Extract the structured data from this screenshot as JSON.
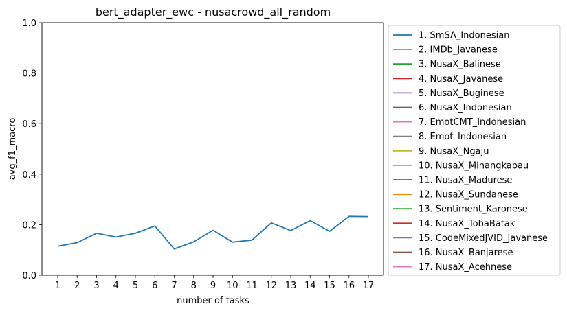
{
  "chart_data": {
    "type": "line",
    "title": "bert_adapter_ewc - nusacrowd_all_random",
    "xlabel": "number of tasks",
    "ylabel": "avg_f1_macro",
    "ylim": [
      0,
      1
    ],
    "yticks": [
      "0.0",
      "0.2",
      "0.4",
      "0.6",
      "0.8",
      "1.0"
    ],
    "categories": [
      "1",
      "2",
      "3",
      "4",
      "5",
      "6",
      "7",
      "8",
      "9",
      "10",
      "11",
      "12",
      "13",
      "14",
      "15",
      "16",
      "17"
    ],
    "series": [
      {
        "name": "avg_f1_macro",
        "color": "#1f77b4",
        "values": [
          0.115,
          0.129,
          0.166,
          0.151,
          0.166,
          0.195,
          0.104,
          0.132,
          0.178,
          0.131,
          0.139,
          0.207,
          0.177,
          0.216,
          0.174,
          0.233,
          0.232
        ]
      }
    ],
    "legend": {
      "position": "outside-right",
      "entries": [
        {
          "label": "1. SmSA_Indonesian",
          "color": "#1f77b4"
        },
        {
          "label": "2. IMDb_Javanese",
          "color": "#ff7f0e"
        },
        {
          "label": "3. NusaX_Balinese",
          "color": "#2ca02c"
        },
        {
          "label": "4. NusaX_Javanese",
          "color": "#d62728"
        },
        {
          "label": "5. NusaX_Buginese",
          "color": "#9467bd"
        },
        {
          "label": "6. NusaX_Indonesian",
          "color": "#8c564b"
        },
        {
          "label": "7. EmotCMT_Indonesian",
          "color": "#e377c2"
        },
        {
          "label": "8. Emot_Indonesian",
          "color": "#7f7f7f"
        },
        {
          "label": "9. NusaX_Ngaju",
          "color": "#bcbd22"
        },
        {
          "label": "10. NusaX_Minangkabau",
          "color": "#17becf"
        },
        {
          "label": "11. NusaX_Madurese",
          "color": "#1f77b4"
        },
        {
          "label": "12. NusaX_Sundanese",
          "color": "#ff7f0e"
        },
        {
          "label": "13. Sentiment_Karonese",
          "color": "#2ca02c"
        },
        {
          "label": "14. NusaX_TobaBatak",
          "color": "#d62728"
        },
        {
          "label": "15. CodeMixedJVID_Javanese",
          "color": "#9467bd"
        },
        {
          "label": "16. NusaX_Banjarese",
          "color": "#8c564b"
        },
        {
          "label": "17. NusaX_Acehnese",
          "color": "#e377c2"
        }
      ]
    }
  }
}
